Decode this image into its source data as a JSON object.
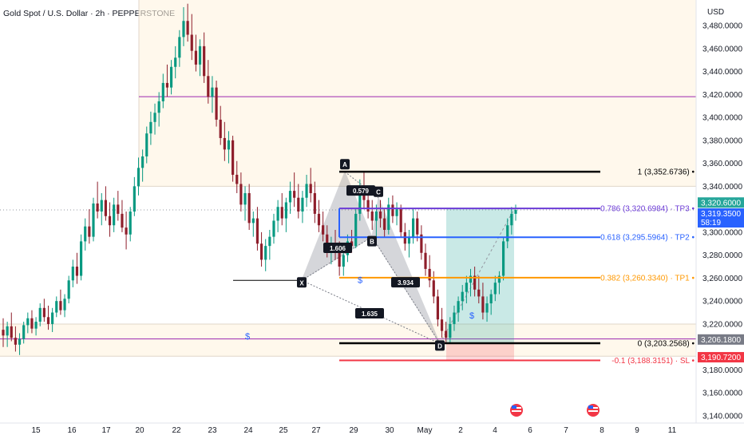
{
  "header": {
    "title": "Gold Spot / U.S. Dollar · 2h · PEPPERSTONE",
    "currency": "USD"
  },
  "chart_data": {
    "type": "candlestick",
    "ylim": [
      3130,
      3500
    ],
    "y_ticks": [
      {
        "value": 3480,
        "label": "3,480.0000"
      },
      {
        "value": 3460,
        "label": "3,460.0000"
      },
      {
        "value": 3440,
        "label": "3,440.0000"
      },
      {
        "value": 3420,
        "label": "3,420.0000"
      },
      {
        "value": 3400,
        "label": "3,400.0000"
      },
      {
        "value": 3380,
        "label": "3,380.0000"
      },
      {
        "value": 3360,
        "label": "3,360.0000"
      },
      {
        "value": 3340,
        "label": "3,340.0000"
      },
      {
        "value": 3300,
        "label": "3,300.0000"
      },
      {
        "value": 3280,
        "label": "3,280.0000"
      },
      {
        "value": 3260,
        "label": "3,260.0000"
      },
      {
        "value": 3240,
        "label": "3,240.0000"
      },
      {
        "value": 3220,
        "label": "3,220.0000"
      },
      {
        "value": 3180,
        "label": "3,180.0000"
      },
      {
        "value": 3160,
        "label": "3,160.0000"
      },
      {
        "value": 3140,
        "label": "3,140.0000"
      }
    ],
    "x_ticks": [
      "15",
      "16",
      "17",
      "20",
      "22",
      "23",
      "24",
      "25",
      "27",
      "29",
      "30",
      "May",
      "2",
      "4",
      "6",
      "7",
      "8",
      "9",
      "11"
    ],
    "price_badges": [
      {
        "value": 3320.6,
        "label": "3,320.6000",
        "color": "#26a69a"
      },
      {
        "value": 3319.35,
        "label": "3,319.3500",
        "sub": "58:19",
        "color": "#2962ff"
      },
      {
        "value": 3206.18,
        "label": "3,206.1800",
        "color": "#787b86"
      },
      {
        "value": 3190.72,
        "label": "3,190.7200",
        "color": "#f23645"
      }
    ],
    "fib_levels": [
      {
        "value": 3352.6736,
        "label": "1 (3,352.6736)",
        "color": "#000000"
      },
      {
        "value": 3320.6984,
        "label": "0.786 (3,320.6984) · TP3",
        "color": "#6c3bd6"
      },
      {
        "value": 3295.5964,
        "label": "0.618 (3,295.5964) · TP2",
        "color": "#2962ff"
      },
      {
        "value": 3260.334,
        "label": "0.382 (3,260.3340) · TP1",
        "color": "#ff9800"
      },
      {
        "value": 3203.2568,
        "label": "0 (3,203.2568)",
        "color": "#000000"
      },
      {
        "value": 3188.3151,
        "label": "-0.1 (3,188.3151) · SL",
        "color": "#f23645"
      }
    ],
    "pattern_points": [
      {
        "label": "X",
        "value": 3258
      },
      {
        "label": "A",
        "value": 3352.6
      },
      {
        "label": "B",
        "value": 3296
      },
      {
        "label": "C",
        "value": 3330
      },
      {
        "label": "D",
        "value": 3203
      }
    ],
    "ratio_labels": [
      "0.579",
      "1.606",
      "3.934",
      "1.635"
    ],
    "horizontal_lines": [
      {
        "value": 3418,
        "color": "#9c27b0"
      },
      {
        "value": 3207,
        "color": "#9c27b0"
      },
      {
        "value": 3258,
        "color": "#000000"
      }
    ],
    "markers": [
      "$",
      "$",
      "$"
    ],
    "candles": [
      {
        "o": 3215,
        "h": 3225,
        "l": 3200,
        "c": 3210
      },
      {
        "o": 3210,
        "h": 3222,
        "l": 3200,
        "c": 3218
      },
      {
        "o": 3218,
        "h": 3230,
        "l": 3205,
        "c": 3208
      },
      {
        "o": 3208,
        "h": 3218,
        "l": 3196,
        "c": 3202
      },
      {
        "o": 3202,
        "h": 3212,
        "l": 3193,
        "c": 3207
      },
      {
        "o": 3207,
        "h": 3222,
        "l": 3203,
        "c": 3219
      },
      {
        "o": 3219,
        "h": 3230,
        "l": 3212,
        "c": 3225
      },
      {
        "o": 3225,
        "h": 3232,
        "l": 3212,
        "c": 3216
      },
      {
        "o": 3216,
        "h": 3226,
        "l": 3210,
        "c": 3222
      },
      {
        "o": 3222,
        "h": 3238,
        "l": 3218,
        "c": 3234
      },
      {
        "o": 3234,
        "h": 3242,
        "l": 3222,
        "c": 3226
      },
      {
        "o": 3226,
        "h": 3236,
        "l": 3215,
        "c": 3220
      },
      {
        "o": 3220,
        "h": 3234,
        "l": 3213,
        "c": 3230
      },
      {
        "o": 3230,
        "h": 3244,
        "l": 3226,
        "c": 3240
      },
      {
        "o": 3240,
        "h": 3250,
        "l": 3228,
        "c": 3232
      },
      {
        "o": 3232,
        "h": 3246,
        "l": 3226,
        "c": 3242
      },
      {
        "o": 3242,
        "h": 3262,
        "l": 3238,
        "c": 3258
      },
      {
        "o": 3258,
        "h": 3276,
        "l": 3252,
        "c": 3270
      },
      {
        "o": 3270,
        "h": 3282,
        "l": 3255,
        "c": 3262
      },
      {
        "o": 3262,
        "h": 3298,
        "l": 3258,
        "c": 3292
      },
      {
        "o": 3292,
        "h": 3312,
        "l": 3284,
        "c": 3305
      },
      {
        "o": 3305,
        "h": 3320,
        "l": 3290,
        "c": 3296
      },
      {
        "o": 3296,
        "h": 3330,
        "l": 3292,
        "c": 3325
      },
      {
        "o": 3325,
        "h": 3344,
        "l": 3312,
        "c": 3318
      },
      {
        "o": 3318,
        "h": 3334,
        "l": 3306,
        "c": 3328
      },
      {
        "o": 3328,
        "h": 3340,
        "l": 3310,
        "c": 3314
      },
      {
        "o": 3314,
        "h": 3326,
        "l": 3296,
        "c": 3306
      },
      {
        "o": 3306,
        "h": 3330,
        "l": 3300,
        "c": 3324
      },
      {
        "o": 3324,
        "h": 3336,
        "l": 3310,
        "c": 3316
      },
      {
        "o": 3316,
        "h": 3328,
        "l": 3300,
        "c": 3304
      },
      {
        "o": 3304,
        "h": 3318,
        "l": 3285,
        "c": 3298
      },
      {
        "o": 3298,
        "h": 3322,
        "l": 3292,
        "c": 3318
      },
      {
        "o": 3318,
        "h": 3348,
        "l": 3314,
        "c": 3340
      },
      {
        "o": 3340,
        "h": 3365,
        "l": 3332,
        "c": 3356
      },
      {
        "o": 3356,
        "h": 3372,
        "l": 3344,
        "c": 3366
      },
      {
        "o": 3366,
        "h": 3392,
        "l": 3360,
        "c": 3386
      },
      {
        "o": 3386,
        "h": 3405,
        "l": 3376,
        "c": 3396
      },
      {
        "o": 3396,
        "h": 3412,
        "l": 3385,
        "c": 3404
      },
      {
        "o": 3404,
        "h": 3422,
        "l": 3392,
        "c": 3414
      },
      {
        "o": 3414,
        "h": 3438,
        "l": 3408,
        "c": 3430
      },
      {
        "o": 3430,
        "h": 3446,
        "l": 3418,
        "c": 3426
      },
      {
        "o": 3426,
        "h": 3450,
        "l": 3420,
        "c": 3444
      },
      {
        "o": 3444,
        "h": 3462,
        "l": 3434,
        "c": 3452
      },
      {
        "o": 3452,
        "h": 3476,
        "l": 3444,
        "c": 3470
      },
      {
        "o": 3470,
        "h": 3496,
        "l": 3462,
        "c": 3484
      },
      {
        "o": 3484,
        "h": 3499,
        "l": 3466,
        "c": 3472
      },
      {
        "o": 3472,
        "h": 3490,
        "l": 3450,
        "c": 3458
      },
      {
        "o": 3458,
        "h": 3472,
        "l": 3440,
        "c": 3446
      },
      {
        "o": 3446,
        "h": 3468,
        "l": 3436,
        "c": 3462
      },
      {
        "o": 3462,
        "h": 3474,
        "l": 3430,
        "c": 3436
      },
      {
        "o": 3436,
        "h": 3450,
        "l": 3412,
        "c": 3418
      },
      {
        "o": 3418,
        "h": 3436,
        "l": 3404,
        "c": 3426
      },
      {
        "o": 3426,
        "h": 3432,
        "l": 3392,
        "c": 3398
      },
      {
        "o": 3398,
        "h": 3410,
        "l": 3376,
        "c": 3382
      },
      {
        "o": 3382,
        "h": 3396,
        "l": 3362,
        "c": 3372
      },
      {
        "o": 3372,
        "h": 3388,
        "l": 3360,
        "c": 3380
      },
      {
        "o": 3380,
        "h": 3384,
        "l": 3344,
        "c": 3350
      },
      {
        "o": 3350,
        "h": 3362,
        "l": 3334,
        "c": 3342
      },
      {
        "o": 3342,
        "h": 3352,
        "l": 3318,
        "c": 3324
      },
      {
        "o": 3324,
        "h": 3340,
        "l": 3310,
        "c": 3334
      },
      {
        "o": 3334,
        "h": 3342,
        "l": 3302,
        "c": 3308
      },
      {
        "o": 3308,
        "h": 3318,
        "l": 3296,
        "c": 3312
      },
      {
        "o": 3312,
        "h": 3322,
        "l": 3284,
        "c": 3290
      },
      {
        "o": 3290,
        "h": 3300,
        "l": 3270,
        "c": 3276
      },
      {
        "o": 3276,
        "h": 3294,
        "l": 3266,
        "c": 3288
      },
      {
        "o": 3288,
        "h": 3302,
        "l": 3276,
        "c": 3296
      },
      {
        "o": 3296,
        "h": 3316,
        "l": 3290,
        "c": 3310
      },
      {
        "o": 3310,
        "h": 3328,
        "l": 3300,
        "c": 3322
      },
      {
        "o": 3322,
        "h": 3334,
        "l": 3306,
        "c": 3312
      },
      {
        "o": 3312,
        "h": 3330,
        "l": 3300,
        "c": 3326
      },
      {
        "o": 3326,
        "h": 3344,
        "l": 3316,
        "c": 3336
      },
      {
        "o": 3336,
        "h": 3352,
        "l": 3322,
        "c": 3330
      },
      {
        "o": 3330,
        "h": 3342,
        "l": 3312,
        "c": 3318
      },
      {
        "o": 3318,
        "h": 3336,
        "l": 3308,
        "c": 3330
      },
      {
        "o": 3330,
        "h": 3350,
        "l": 3322,
        "c": 3342
      },
      {
        "o": 3342,
        "h": 3356,
        "l": 3326,
        "c": 3334
      },
      {
        "o": 3334,
        "h": 3344,
        "l": 3308,
        "c": 3316
      },
      {
        "o": 3316,
        "h": 3328,
        "l": 3300,
        "c": 3306
      },
      {
        "o": 3306,
        "h": 3318,
        "l": 3292,
        "c": 3298
      },
      {
        "o": 3298,
        "h": 3306,
        "l": 3278,
        "c": 3284
      },
      {
        "o": 3284,
        "h": 3296,
        "l": 3272,
        "c": 3290
      },
      {
        "o": 3290,
        "h": 3302,
        "l": 3276,
        "c": 3282
      },
      {
        "o": 3282,
        "h": 3292,
        "l": 3262,
        "c": 3270
      },
      {
        "o": 3270,
        "h": 3286,
        "l": 3262,
        "c": 3280
      },
      {
        "o": 3280,
        "h": 3298,
        "l": 3274,
        "c": 3292
      },
      {
        "o": 3292,
        "h": 3302,
        "l": 3282,
        "c": 3288
      },
      {
        "o": 3288,
        "h": 3320,
        "l": 3286,
        "c": 3316
      },
      {
        "o": 3316,
        "h": 3346,
        "l": 3310,
        "c": 3340
      },
      {
        "o": 3340,
        "h": 3352,
        "l": 3320,
        "c": 3328
      },
      {
        "o": 3328,
        "h": 3340,
        "l": 3312,
        "c": 3318
      },
      {
        "o": 3318,
        "h": 3328,
        "l": 3302,
        "c": 3310
      },
      {
        "o": 3310,
        "h": 3324,
        "l": 3296,
        "c": 3318
      },
      {
        "o": 3318,
        "h": 3328,
        "l": 3304,
        "c": 3312
      },
      {
        "o": 3312,
        "h": 3320,
        "l": 3296,
        "c": 3302
      },
      {
        "o": 3302,
        "h": 3330,
        "l": 3298,
        "c": 3324
      },
      {
        "o": 3324,
        "h": 3332,
        "l": 3308,
        "c": 3314
      },
      {
        "o": 3314,
        "h": 3326,
        "l": 3306,
        "c": 3320
      },
      {
        "o": 3320,
        "h": 3324,
        "l": 3296,
        "c": 3300
      },
      {
        "o": 3300,
        "h": 3308,
        "l": 3284,
        "c": 3290
      },
      {
        "o": 3290,
        "h": 3302,
        "l": 3278,
        "c": 3296
      },
      {
        "o": 3296,
        "h": 3320,
        "l": 3290,
        "c": 3312
      },
      {
        "o": 3312,
        "h": 3318,
        "l": 3292,
        "c": 3298
      },
      {
        "o": 3298,
        "h": 3306,
        "l": 3276,
        "c": 3282
      },
      {
        "o": 3282,
        "h": 3290,
        "l": 3262,
        "c": 3268
      },
      {
        "o": 3268,
        "h": 3280,
        "l": 3252,
        "c": 3258
      },
      {
        "o": 3258,
        "h": 3266,
        "l": 3238,
        "c": 3244
      },
      {
        "o": 3244,
        "h": 3250,
        "l": 3218,
        "c": 3224
      },
      {
        "o": 3224,
        "h": 3234,
        "l": 3208,
        "c": 3214
      },
      {
        "o": 3214,
        "h": 3222,
        "l": 3203,
        "c": 3208
      },
      {
        "o": 3208,
        "h": 3226,
        "l": 3203,
        "c": 3220
      },
      {
        "o": 3220,
        "h": 3236,
        "l": 3214,
        "c": 3230
      },
      {
        "o": 3230,
        "h": 3244,
        "l": 3222,
        "c": 3240
      },
      {
        "o": 3240,
        "h": 3254,
        "l": 3232,
        "c": 3248
      },
      {
        "o": 3248,
        "h": 3262,
        "l": 3238,
        "c": 3256
      },
      {
        "o": 3256,
        "h": 3268,
        "l": 3244,
        "c": 3262
      },
      {
        "o": 3262,
        "h": 3270,
        "l": 3244,
        "c": 3250
      },
      {
        "o": 3250,
        "h": 3262,
        "l": 3238,
        "c": 3244
      },
      {
        "o": 3244,
        "h": 3256,
        "l": 3224,
        "c": 3230
      },
      {
        "o": 3230,
        "h": 3244,
        "l": 3222,
        "c": 3238
      },
      {
        "o": 3238,
        "h": 3250,
        "l": 3228,
        "c": 3246
      },
      {
        "o": 3246,
        "h": 3262,
        "l": 3240,
        "c": 3256
      },
      {
        "o": 3256,
        "h": 3266,
        "l": 3246,
        "c": 3262
      },
      {
        "o": 3262,
        "h": 3296,
        "l": 3258,
        "c": 3292
      },
      {
        "o": 3292,
        "h": 3312,
        "l": 3286,
        "c": 3306
      },
      {
        "o": 3306,
        "h": 3322,
        "l": 3298,
        "c": 3316
      },
      {
        "o": 3316,
        "h": 3324,
        "l": 3310,
        "c": 3319.35
      }
    ]
  }
}
